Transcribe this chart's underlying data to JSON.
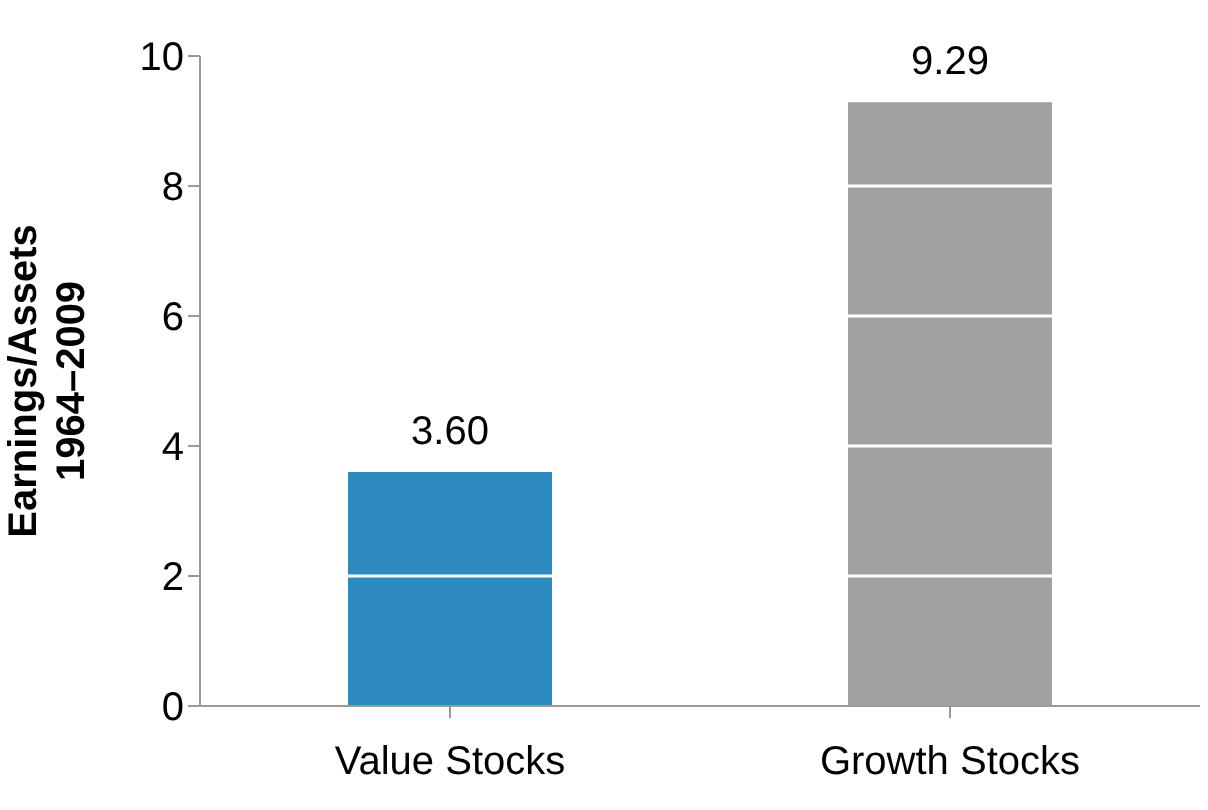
{
  "chart_data": {
    "type": "bar",
    "ylabel": "Earnings/Assets\n1964–2009",
    "categories": [
      "Value Stocks",
      "Growth Stocks"
    ],
    "values": [
      3.6,
      9.29
    ],
    "colors": [
      "#2e8bc0",
      "#a0a0a0"
    ],
    "value_labels": [
      "3.60",
      "9.29"
    ],
    "ylim": [
      0,
      10
    ],
    "yticks": [
      0,
      2,
      4,
      6,
      8,
      10
    ],
    "grid": "y"
  }
}
